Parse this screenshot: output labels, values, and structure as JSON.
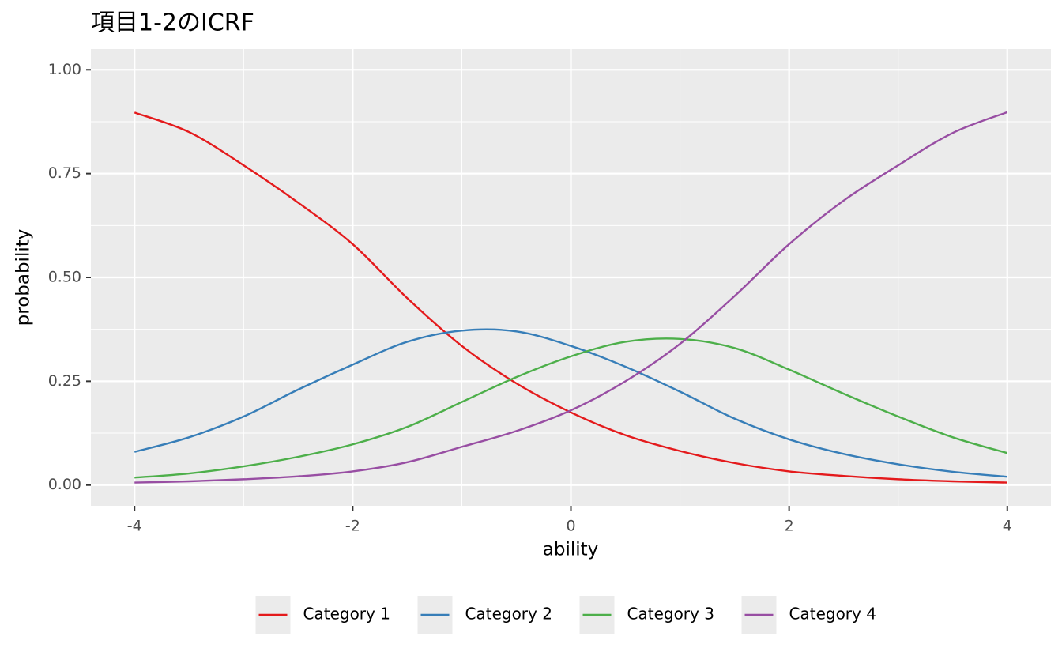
{
  "chart_data": {
    "type": "line",
    "title": "項目1-2のICRF",
    "x_label": "ability",
    "y_label": "probability",
    "x": [
      -4,
      -3.5,
      -3,
      -2.5,
      -2,
      -1.5,
      -1,
      -0.5,
      0,
      0.5,
      1,
      1.5,
      2,
      2.5,
      3,
      3.5,
      4
    ],
    "series": [
      {
        "name": "Category 1",
        "color": "#E41A1C",
        "values": [
          0.897,
          0.85,
          0.77,
          0.68,
          0.58,
          0.45,
          0.335,
          0.245,
          0.175,
          0.12,
          0.082,
          0.053,
          0.033,
          0.022,
          0.014,
          0.009,
          0.006
        ]
      },
      {
        "name": "Category 2",
        "color": "#377EB8",
        "values": [
          0.08,
          0.115,
          0.165,
          0.23,
          0.29,
          0.345,
          0.372,
          0.37,
          0.335,
          0.285,
          0.225,
          0.16,
          0.11,
          0.075,
          0.05,
          0.032,
          0.02
        ]
      },
      {
        "name": "Category 3",
        "color": "#4DAF4A",
        "values": [
          0.018,
          0.028,
          0.045,
          0.068,
          0.098,
          0.14,
          0.2,
          0.26,
          0.31,
          0.345,
          0.352,
          0.33,
          0.278,
          0.22,
          0.165,
          0.115,
          0.077
        ]
      },
      {
        "name": "Category 4",
        "color": "#984EA3",
        "values": [
          0.006,
          0.009,
          0.014,
          0.021,
          0.033,
          0.055,
          0.092,
          0.13,
          0.18,
          0.25,
          0.34,
          0.455,
          0.58,
          0.685,
          0.77,
          0.848,
          0.898
        ]
      }
    ],
    "xlim": [
      -4.4,
      4.4
    ],
    "ylim": [
      -0.05,
      1.05
    ],
    "xticks": [
      -4,
      -2,
      0,
      2,
      4
    ],
    "yticks": [
      {
        "value": 0,
        "label": "0.00"
      },
      {
        "value": 0.25,
        "label": "0.25"
      },
      {
        "value": 0.5,
        "label": "0.50"
      },
      {
        "value": 0.75,
        "label": "0.75"
      },
      {
        "value": 1,
        "label": "1.00"
      }
    ],
    "x_minor_grid": [
      -3,
      -1,
      1,
      3
    ],
    "y_minor_grid": [
      0.125,
      0.375,
      0.625,
      0.875
    ],
    "grid": true,
    "legend": "bottom"
  }
}
